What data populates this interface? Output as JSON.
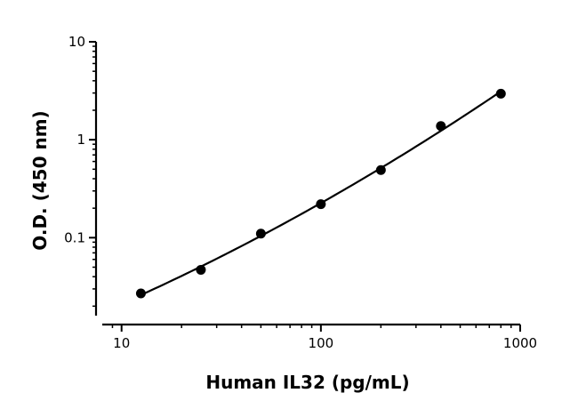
{
  "chart_data": {
    "type": "scatter",
    "title": "",
    "xlabel": "Human IL32 (pg/mL)",
    "ylabel": "O.D. (450 nm)",
    "xscale": "log",
    "yscale": "log",
    "xlim": [
      8,
      1000
    ],
    "ylim": [
      0.016,
      10
    ],
    "x_ticks": [
      10,
      100,
      1000
    ],
    "x_tick_labels": [
      "10",
      "100",
      "1000"
    ],
    "y_ticks": [
      0.1,
      1,
      10
    ],
    "y_tick_labels": [
      "0.1",
      "1",
      "10"
    ],
    "grid": false,
    "legend": "none",
    "fit_curve": true,
    "series": [
      {
        "x": [
          12.5,
          25,
          50,
          100,
          200,
          400,
          800
        ],
        "y": [
          0.027,
          0.047,
          0.11,
          0.22,
          0.49,
          1.38,
          2.95
        ]
      }
    ],
    "marker_color": "#000000",
    "line_color": "#000000"
  }
}
